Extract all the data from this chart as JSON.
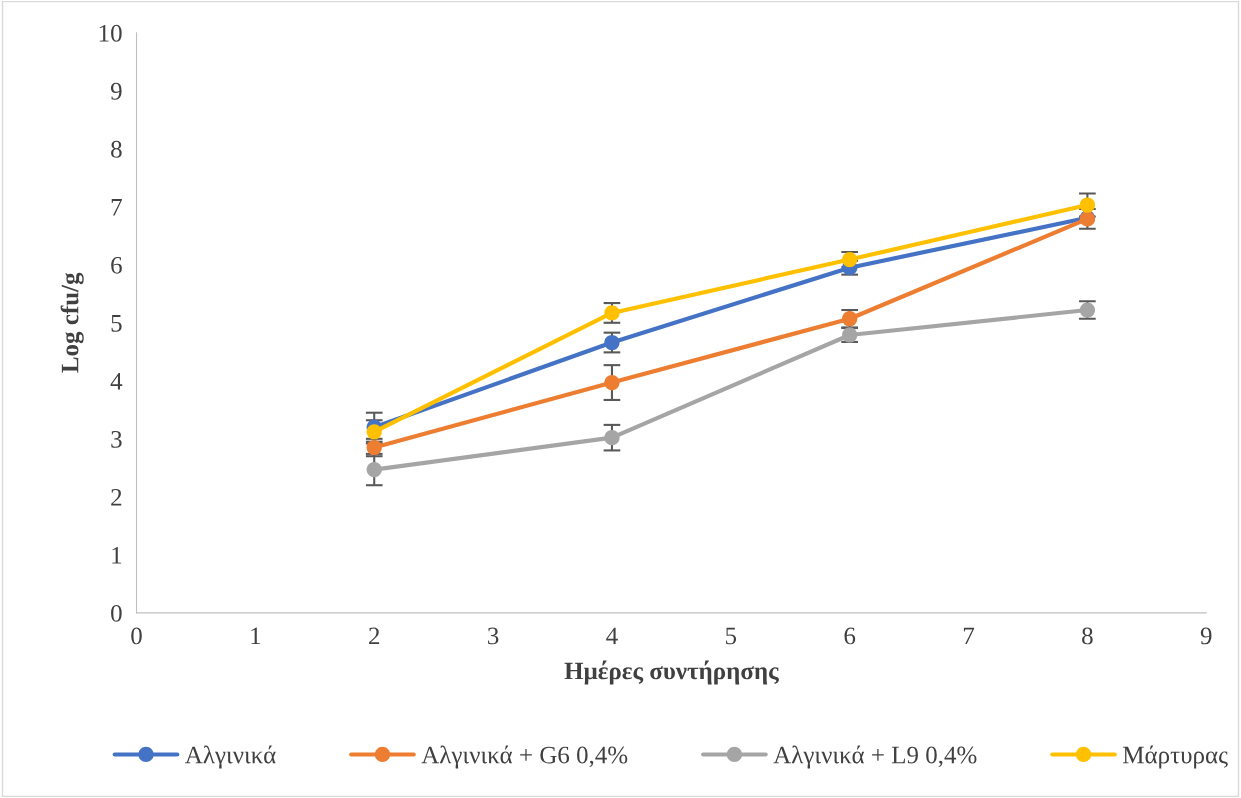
{
  "chart_data": {
    "type": "line",
    "xlabel": "Ημέρες συντήρησης",
    "ylabel": "Log cfu/g",
    "xlim": [
      0,
      9
    ],
    "xticks": [
      0,
      1,
      2,
      3,
      4,
      5,
      6,
      7,
      8,
      9
    ],
    "ylim": [
      0,
      10
    ],
    "yticks": [
      0,
      1,
      2,
      3,
      4,
      5,
      6,
      7,
      8,
      9,
      10
    ],
    "x": [
      2,
      4,
      6,
      8
    ],
    "grid": false,
    "legend": "bottom",
    "marker": "circle",
    "line_style": "solid",
    "series": [
      {
        "name": "Αλγινικά",
        "color": "#4472c4",
        "values": [
          3.2,
          4.66,
          5.95,
          6.81
        ],
        "errors": [
          0.25,
          0.17,
          0.12,
          null
        ]
      },
      {
        "name": "Αλγινικά + G6 0,4%",
        "color": "#ed7d31",
        "values": [
          2.85,
          3.97,
          5.07,
          6.79
        ],
        "errors": [
          0.15,
          0.3,
          0.15,
          0.17
        ]
      },
      {
        "name": "Αλγινικά + L9 0,4%",
        "color": "#a5a5a5",
        "values": [
          2.47,
          3.02,
          4.79,
          5.22
        ],
        "errors": [
          0.27,
          0.22,
          0.12,
          0.15
        ]
      },
      {
        "name": "Μάρτυρας",
        "color": "#ffc000",
        "values": [
          3.12,
          5.17,
          6.09,
          7.03
        ],
        "errors": [
          0.2,
          0.17,
          0.13,
          0.2
        ]
      }
    ]
  }
}
